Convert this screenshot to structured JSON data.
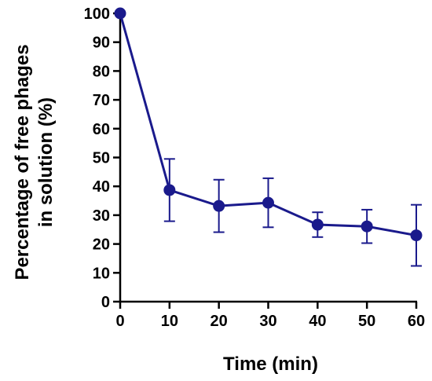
{
  "chart_data": {
    "type": "line",
    "xlabel": "Time (min)",
    "ylabel_lines": [
      "Percentage of free phages",
      "in solution (%)"
    ],
    "x": [
      0,
      10,
      20,
      30,
      40,
      50,
      60
    ],
    "series": [
      {
        "values": [
          100,
          38.7,
          33.2,
          34.3,
          26.7,
          26.1,
          23.0
        ],
        "error_low": [
          100,
          27.9,
          24.1,
          25.8,
          22.4,
          20.3,
          12.4
        ],
        "error_high": [
          100,
          49.5,
          42.3,
          42.8,
          31.0,
          31.9,
          33.6
        ],
        "color": "#1a1a8c"
      }
    ],
    "xlim": [
      0,
      60
    ],
    "ylim": [
      0,
      100
    ],
    "xticks": [
      "0",
      "10",
      "20",
      "30",
      "40",
      "50",
      "60"
    ],
    "yticks": [
      "0",
      "10",
      "20",
      "30",
      "40",
      "50",
      "60",
      "70",
      "80",
      "90",
      "100"
    ],
    "grid": false,
    "axis_color": "#000000"
  }
}
